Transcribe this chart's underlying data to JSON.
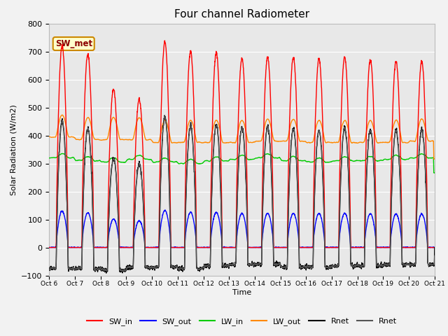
{
  "title": "Four channel Radiometer",
  "xlabel": "Time",
  "ylabel": "Solar Radiation (W/m2)",
  "ylim": [
    -100,
    800
  ],
  "background_color": "#f2f2f2",
  "plot_bg_color": "#e8e8e8",
  "annotation_text": "SW_met",
  "annotation_bg": "#ffffcc",
  "annotation_border": "#cc8800",
  "annotation_text_color": "#8b0000",
  "series": {
    "SW_in": {
      "color": "#ff0000",
      "lw": 1.0
    },
    "SW_out": {
      "color": "#0000ff",
      "lw": 1.0
    },
    "LW_in": {
      "color": "#00cc00",
      "lw": 1.0
    },
    "LW_out": {
      "color": "#ff8800",
      "lw": 1.0
    },
    "Rnet1": {
      "color": "#000000",
      "lw": 1.0
    },
    "Rnet2": {
      "color": "#555555",
      "lw": 1.0
    }
  },
  "xtick_labels": [
    "Oct 6",
    "Oct 7",
    "Oct 8",
    "Oct 9",
    "Oct 10ct 11",
    "Oct 12",
    "Oct 13",
    "Oct 14",
    "Oct 15",
    "Oct 16",
    "Oct 17",
    "Oct 18",
    "Oct 19",
    "Oct 20ct 21"
  ],
  "n_days": 15,
  "pts_per_day": 144,
  "legend_labels": [
    "SW_in",
    "SW_out",
    "LW_in",
    "LW_out",
    "Rnet",
    "Rnet"
  ],
  "legend_colors": [
    "#ff0000",
    "#0000ff",
    "#00cc00",
    "#ff8800",
    "#000000",
    "#555555"
  ]
}
